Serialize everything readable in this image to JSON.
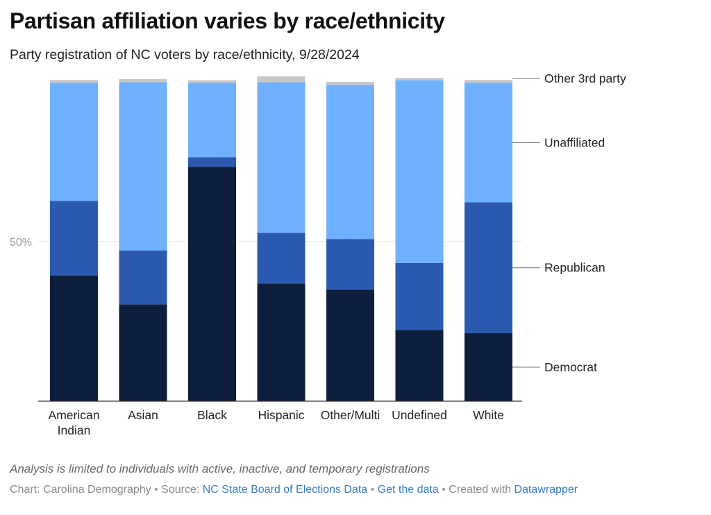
{
  "header": {
    "title": "Partisan affiliation varies by race/ethnicity",
    "subtitle": "Party registration of NC voters by race/ethnicity, 9/28/2024"
  },
  "chart_data": {
    "type": "bar",
    "stacked": true,
    "orientation": "vertical",
    "categories": [
      "American Indian",
      "Asian",
      "Black",
      "Hispanic",
      "Other/Multi",
      "Undefined",
      "White"
    ],
    "series": [
      {
        "name": "Democrat",
        "color": "#0d1f3d",
        "values": [
          39.4,
          30.3,
          73.4,
          36.9,
          34.9,
          22.3,
          21.3
        ]
      },
      {
        "name": "Republican",
        "color": "#2b5ab0",
        "values": [
          23.3,
          16.9,
          3.0,
          15.8,
          15.9,
          21.0,
          41.0
        ]
      },
      {
        "name": "Unaffiliated",
        "color": "#6fb0ff",
        "values": [
          37.0,
          52.7,
          23.3,
          47.2,
          48.2,
          57.2,
          37.4
        ]
      },
      {
        "name": "Other 3rd party",
        "color": "#c6c6c6",
        "values": [
          0.9,
          1.0,
          0.8,
          1.8,
          1.0,
          0.8,
          0.9
        ]
      }
    ],
    "ylim": [
      0,
      100
    ],
    "yticks": [
      {
        "value": 50,
        "label": "50%"
      }
    ],
    "grid": true,
    "legend": "direct labels on right",
    "xlabel": "",
    "ylabel": ""
  },
  "footer": {
    "note": "Analysis is limited to individuals with active, inactive, and temporary registrations",
    "chart_label": "Chart: Carolina Demography",
    "separator": " • ",
    "source_label": "Source: ",
    "source_link": "NC State Board of Elections Data",
    "get_data_link": "Get the data",
    "created_label": "Created with ",
    "created_link": "Datawrapper"
  }
}
